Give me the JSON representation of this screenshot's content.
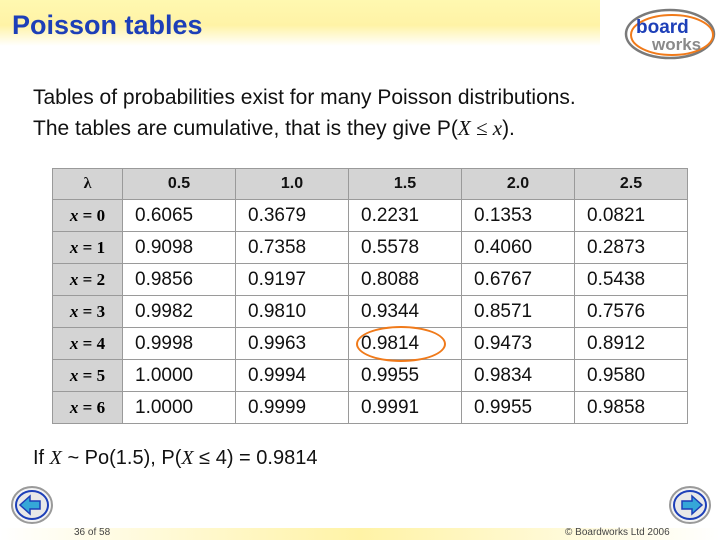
{
  "header": {
    "title": "Poisson tables",
    "logo_line1": "board",
    "logo_line2": "works"
  },
  "intro": {
    "line1": "Tables of probabilities exist for many Poisson distributions.",
    "line2_a": "The tables are cumulative, that is they give P(",
    "line2_b": "X",
    "line2_c": " ≤ ",
    "line2_d": "x",
    "line2_e": ")."
  },
  "table": {
    "corner": "λ",
    "columns": [
      "0.5",
      "1.0",
      "1.5",
      "2.0",
      "2.5"
    ],
    "rows": [
      {
        "x": "x",
        "label": " = 0",
        "values": [
          "0.6065",
          "0.3679",
          "0.2231",
          "0.1353",
          "0.0821"
        ]
      },
      {
        "x": "x",
        "label": " = 1",
        "values": [
          "0.9098",
          "0.7358",
          "0.5578",
          "0.4060",
          "0.2873"
        ]
      },
      {
        "x": "x",
        "label": " = 2",
        "values": [
          "0.9856",
          "0.9197",
          "0.8088",
          "0.6767",
          "0.5438"
        ]
      },
      {
        "x": "x",
        "label": " = 3",
        "values": [
          "0.9982",
          "0.9810",
          "0.9344",
          "0.8571",
          "0.7576"
        ]
      },
      {
        "x": "x",
        "label": " = 4",
        "values": [
          "0.9998",
          "0.9963",
          "0.9814",
          "0.9473",
          "0.8912"
        ]
      },
      {
        "x": "x",
        "label": " = 5",
        "values": [
          "1.0000",
          "0.9994",
          "0.9955",
          "0.9834",
          "0.9580"
        ]
      },
      {
        "x": "x",
        "label": " = 6",
        "values": [
          "1.0000",
          "0.9999",
          "0.9991",
          "0.9955",
          "0.9858"
        ]
      }
    ]
  },
  "conclusion": {
    "a": "If ",
    "b": "X",
    "c": " ~ Po(1.5),  P(",
    "d": "X",
    "e": " ≤ 4) = 0.9814"
  },
  "footer": {
    "page": "36 of 58",
    "copyright": "© Boardworks Ltd 2006"
  },
  "colors": {
    "title": "#1d3fb8",
    "highlight": "#f07a1a",
    "header_bg": "#d4d4d4"
  }
}
